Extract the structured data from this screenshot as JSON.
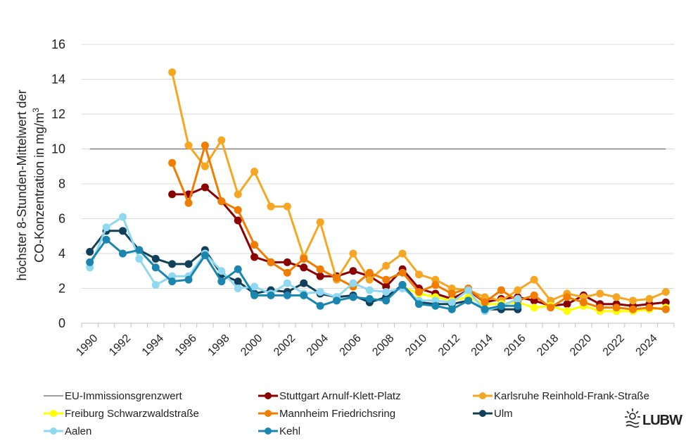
{
  "chart_data": {
    "type": "line",
    "title": "",
    "xlabel": "",
    "ylabel_line1": "höchster 8-Stunden-Mittelwert der",
    "ylabel_line2_prefix": "CO-Konzentration in mg/m",
    "ylabel_line2_sup": "3",
    "xlim": [
      1990,
      2025
    ],
    "ylim": [
      0,
      16
    ],
    "y_ticks": [
      0,
      2,
      4,
      6,
      8,
      10,
      12,
      14,
      16
    ],
    "x_ticks": [
      "1990",
      "1992",
      "1994",
      "1996",
      "1998",
      "2000",
      "2002",
      "2004",
      "2006",
      "2008",
      "2010",
      "2012",
      "2014",
      "2016",
      "2018",
      "2020",
      "2022",
      "2024"
    ],
    "grid": "horizontal",
    "legend_position": "bottom",
    "logo_text": "LUBW",
    "limit": {
      "name": "EU-Immissionsgrenzwert",
      "value": 10,
      "x": [
        1990,
        2025
      ],
      "color": "#808080"
    },
    "series": [
      {
        "name": "Stuttgart Arnulf-Klett-Platz",
        "color": "#8B0000",
        "x": [
          1995,
          1996,
          1997,
          1998,
          1999,
          2000,
          2001,
          2002,
          2003,
          2004,
          2005,
          2006,
          2007,
          2008,
          2009,
          2010,
          2011,
          2012,
          2013,
          2014,
          2015,
          2016,
          2017,
          2018,
          2019,
          2020,
          2021,
          2022,
          2023,
          2024,
          2025
        ],
        "y": [
          7.4,
          7.4,
          7.8,
          7.0,
          5.9,
          3.8,
          3.5,
          3.5,
          3.2,
          2.7,
          2.7,
          3.0,
          2.7,
          2.1,
          3.1,
          2.0,
          1.7,
          1.4,
          1.9,
          1.2,
          1.4,
          1.5,
          1.3,
          1.0,
          1.1,
          1.6,
          1.1,
          1.1,
          1.0,
          1.1,
          1.2
        ]
      },
      {
        "name": "Karlsruhe Reinhold-Frank-Straße",
        "color": "#F5A623",
        "x": [
          1995,
          1996,
          1997,
          1998,
          1999,
          2000,
          2001,
          2002,
          2003,
          2004,
          2005,
          2006,
          2007,
          2008,
          2009,
          2010,
          2011,
          2012,
          2013,
          2014,
          2015,
          2016,
          2017,
          2018,
          2019,
          2020,
          2021,
          2022,
          2023,
          2024,
          2025
        ],
        "y": [
          14.4,
          10.2,
          9.0,
          10.5,
          7.4,
          8.7,
          6.7,
          6.7,
          3.8,
          5.8,
          2.5,
          4.0,
          2.5,
          3.3,
          4.0,
          2.8,
          2.5,
          2.0,
          1.9,
          1.5,
          1.3,
          1.9,
          2.5,
          1.3,
          1.7,
          1.5,
          1.7,
          1.5,
          1.3,
          1.4,
          1.8
        ]
      },
      {
        "name": "Freiburg Schwarzwaldstraße",
        "color": "#FFFF00",
        "x": [
          2009,
          2010,
          2011,
          2012,
          2013,
          2014,
          2015,
          2016,
          2017,
          2018,
          2019,
          2020,
          2021,
          2022,
          2023,
          2024,
          2025
        ],
        "y": [
          2.1,
          1.7,
          1.5,
          1.3,
          1.5,
          1.1,
          1.1,
          1.2,
          0.9,
          1.0,
          0.7,
          1.0,
          0.7,
          0.7,
          0.7,
          0.8,
          0.9
        ]
      },
      {
        "name": "Mannheim Friedrichsring",
        "color": "#F07C00",
        "x": [
          1995,
          1996,
          1997,
          1998,
          1999,
          2000,
          2001,
          2002,
          2003,
          2004,
          2005,
          2006,
          2007,
          2008,
          2009,
          2010,
          2011,
          2012,
          2013,
          2014,
          2015,
          2016,
          2017,
          2018,
          2019,
          2020,
          2021,
          2022,
          2023,
          2024,
          2025
        ],
        "y": [
          9.2,
          6.9,
          10.2,
          7.0,
          6.5,
          4.5,
          3.5,
          2.9,
          3.7,
          3.1,
          2.6,
          2.1,
          2.9,
          2.5,
          2.9,
          1.8,
          2.2,
          1.7,
          2.0,
          1.2,
          1.9,
          1.3,
          1.6,
          0.9,
          1.5,
          1.2,
          0.9,
          0.9,
          0.8,
          0.9,
          0.8
        ]
      },
      {
        "name": "Ulm",
        "color": "#123F5A",
        "x": [
          1990,
          1991,
          1992,
          1993,
          1994,
          1995,
          1996,
          1997,
          1998,
          1999,
          2000,
          2001,
          2002,
          2003,
          2004,
          2005,
          2006,
          2007,
          2008,
          2009,
          2010,
          2011,
          2012,
          2013,
          2014,
          2015,
          2016
        ],
        "y": [
          4.1,
          5.3,
          5.3,
          4.2,
          3.7,
          3.4,
          3.4,
          4.2,
          2.8,
          2.4,
          1.7,
          1.9,
          1.8,
          2.3,
          1.7,
          1.5,
          1.6,
          1.2,
          1.5,
          2.2,
          1.2,
          1.1,
          1.1,
          1.3,
          0.8,
          0.8,
          0.8
        ]
      },
      {
        "name": "Aalen",
        "color": "#8FD8F0",
        "x": [
          1990,
          1991,
          1992,
          1993,
          1994,
          1995,
          1996,
          1997,
          1998,
          1999,
          2000,
          2001,
          2002,
          2003,
          2004,
          2005,
          2006,
          2007,
          2008,
          2009,
          2010,
          2011,
          2012,
          2013,
          2014,
          2015,
          2016
        ],
        "y": [
          3.2,
          5.5,
          6.1,
          3.7,
          2.2,
          2.7,
          2.7,
          4.0,
          3.0,
          2.0,
          2.1,
          1.7,
          2.3,
          1.7,
          1.8,
          1.5,
          2.3,
          1.9,
          1.8,
          2.0,
          1.3,
          1.3,
          1.2,
          1.9,
          0.7,
          1.0,
          1.4
        ]
      },
      {
        "name": "Kehl",
        "color": "#1A86B0",
        "x": [
          1990,
          1991,
          1992,
          1993,
          1994,
          1995,
          1996,
          1997,
          1998,
          1999,
          2000,
          2001,
          2002,
          2003,
          2004,
          2005,
          2006,
          2007,
          2008,
          2009,
          2010,
          2011,
          2012,
          2013,
          2014,
          2015,
          2016
        ],
        "y": [
          3.5,
          4.8,
          4.0,
          4.2,
          3.2,
          2.4,
          2.5,
          3.9,
          2.4,
          3.1,
          1.6,
          1.6,
          1.6,
          1.6,
          1.0,
          1.3,
          1.5,
          1.4,
          1.3,
          2.2,
          1.1,
          1.0,
          0.8,
          1.3,
          0.8,
          1.0,
          1.0
        ]
      }
    ]
  }
}
